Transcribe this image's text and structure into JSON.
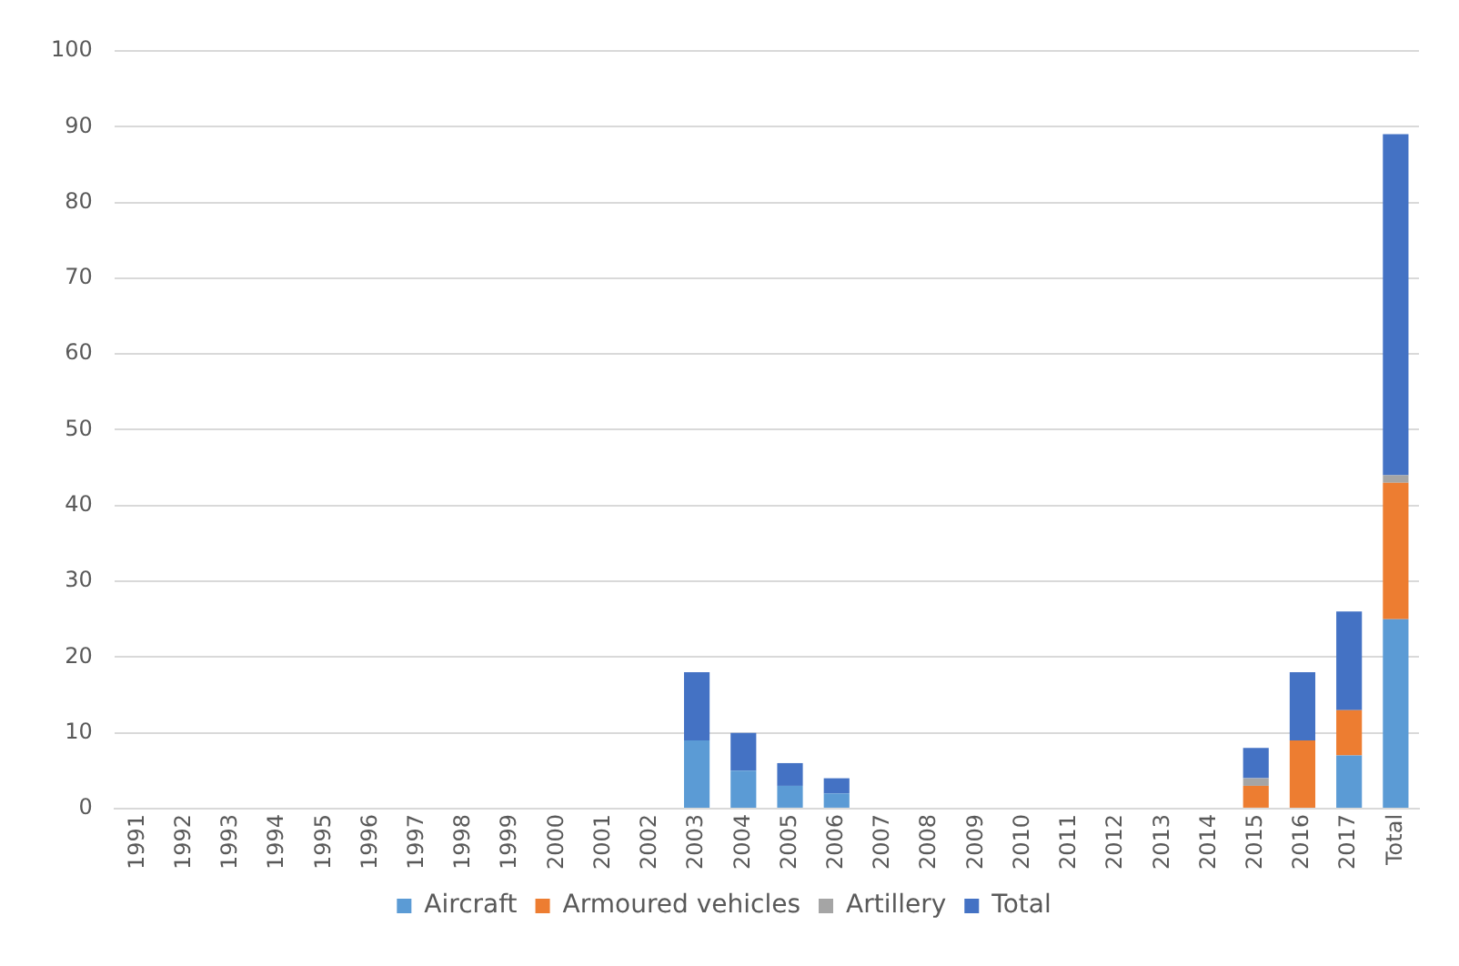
{
  "chart_data": {
    "type": "bar",
    "stacked": true,
    "categories": [
      "1991",
      "1992",
      "1993",
      "1994",
      "1995",
      "1996",
      "1997",
      "1998",
      "1999",
      "2000",
      "2001",
      "2002",
      "2003",
      "2004",
      "2005",
      "2006",
      "2007",
      "2008",
      "2009",
      "2010",
      "2011",
      "2012",
      "2013",
      "2014",
      "2015",
      "2016",
      "2017",
      "Total"
    ],
    "series": [
      {
        "name": "Aircraft",
        "color": "#5b9bd5",
        "values": [
          0,
          0,
          0,
          0,
          0,
          0,
          0,
          0,
          0,
          0,
          0,
          0,
          9,
          5,
          3,
          2,
          0,
          0,
          0,
          0,
          0,
          0,
          0,
          0,
          0,
          0,
          7,
          25
        ]
      },
      {
        "name": "Armoured vehicles",
        "color": "#ed7d31",
        "values": [
          0,
          0,
          0,
          0,
          0,
          0,
          0,
          0,
          0,
          0,
          0,
          0,
          0,
          0,
          0,
          0,
          0,
          0,
          0,
          0,
          0,
          0,
          0,
          0,
          3,
          9,
          6,
          18
        ]
      },
      {
        "name": "Artillery",
        "color": "#a5a5a5",
        "values": [
          0,
          0,
          0,
          0,
          0,
          0,
          0,
          0,
          0,
          0,
          0,
          0,
          0,
          0,
          0,
          0,
          0,
          0,
          0,
          0,
          0,
          0,
          0,
          0,
          1,
          0,
          0,
          1
        ]
      },
      {
        "name": "Total",
        "color": "#4472c4",
        "values": [
          0,
          0,
          0,
          0,
          0,
          0,
          0,
          0,
          0,
          0,
          0,
          0,
          9,
          5,
          3,
          2,
          0,
          0,
          0,
          0,
          0,
          0,
          0,
          0,
          4,
          9,
          13,
          45
        ]
      }
    ],
    "ylim": [
      0,
      100
    ],
    "yticks": [
      0,
      10,
      20,
      30,
      40,
      50,
      60,
      70,
      80,
      90,
      100
    ],
    "grid": "y",
    "legend": "bottom"
  }
}
